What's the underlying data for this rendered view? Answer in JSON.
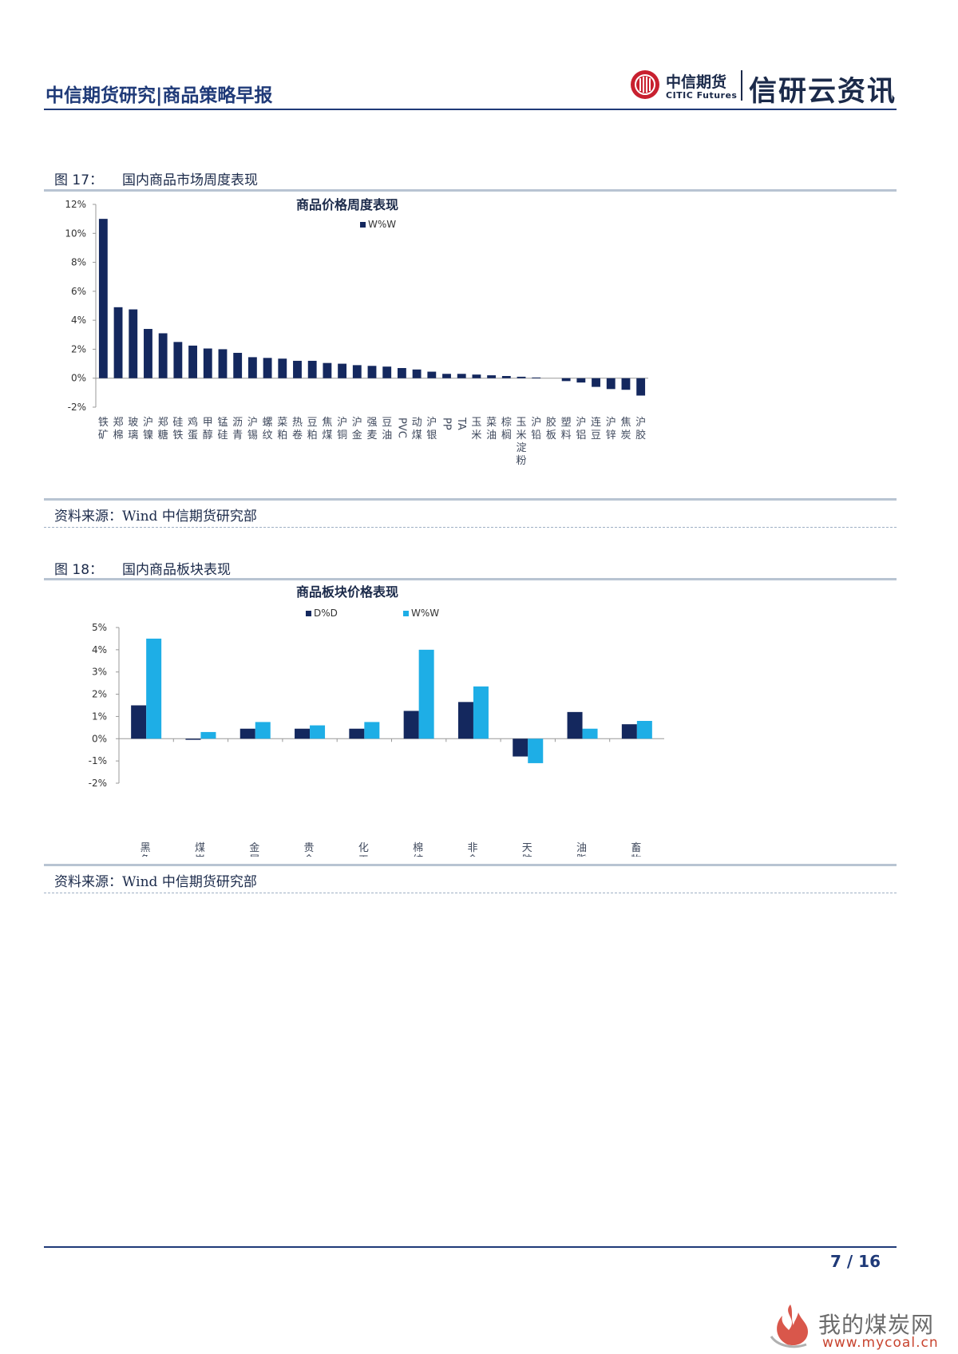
{
  "header": {
    "title": "中信期货研究|商品策略早报",
    "brand_cn": "中信期货",
    "brand_en": "CITIC Futures",
    "slogan": "信研云资讯"
  },
  "figures": [
    {
      "number": "图 17：",
      "caption": "国内商品市场周度表现",
      "source": "资料来源：Wind  中信期货研究部"
    },
    {
      "number": "图 18：",
      "caption": "国内商品板块表现",
      "source": "资料来源：Wind  中信期货研究部"
    }
  ],
  "chart_data": [
    {
      "type": "bar",
      "title": "商品价格周度表现",
      "xlabel": "",
      "ylabel": "",
      "ylim": [
        -2,
        12
      ],
      "yticks": [
        "12%",
        "10%",
        "8%",
        "6%",
        "4%",
        "2%",
        "0%",
        "-2%"
      ],
      "legend_position": "top",
      "color": "#14285e",
      "categories": [
        "铁矿",
        "郑棉",
        "玻璃",
        "沪镍",
        "郑糖",
        "硅铁",
        "鸡蛋",
        "甲醇",
        "锰硅",
        "沥青",
        "沪锡",
        "螺纹",
        "菜粕",
        "热卷",
        "豆粕",
        "焦煤",
        "沪铜",
        "沪金",
        "强麦",
        "豆油",
        "PVC",
        "动煤",
        "沪银",
        "PP",
        "TA",
        "玉米",
        "菜油",
        "棕榈",
        "玉米淀粉",
        "沪铅",
        "胶板",
        "塑料",
        "沪铝",
        "连豆",
        "沪锌",
        "焦炭",
        "沪胶"
      ],
      "series": [
        {
          "name": "W%W",
          "values": [
            11.0,
            4.9,
            4.75,
            3.4,
            3.1,
            2.5,
            2.25,
            2.05,
            2.0,
            1.75,
            1.45,
            1.4,
            1.35,
            1.2,
            1.2,
            1.05,
            1.0,
            0.9,
            0.85,
            0.8,
            0.7,
            0.6,
            0.45,
            0.3,
            0.3,
            0.25,
            0.2,
            0.15,
            0.1,
            0.05,
            0.0,
            -0.2,
            -0.3,
            -0.6,
            -0.75,
            -0.8,
            -1.2
          ]
        }
      ]
    },
    {
      "type": "bar",
      "title": "商品板块价格表现",
      "xlabel": "",
      "ylabel": "",
      "ylim": [
        -2,
        5
      ],
      "yticks": [
        "5%",
        "4%",
        "3%",
        "2%",
        "1%",
        "0%",
        "-1%",
        "-2%"
      ],
      "legend_position": "top",
      "categories": [
        "黑色",
        "煤炭",
        "金属",
        "贵金属",
        "化工",
        "棉纺糖",
        "非金属建材",
        "天胶",
        "油脂",
        "畜牧谷物"
      ],
      "series": [
        {
          "name": "D%D",
          "color": "#14285e",
          "values": [
            1.5,
            -0.05,
            0.45,
            0.45,
            0.45,
            1.25,
            1.65,
            -0.8,
            1.2,
            0.65
          ]
        },
        {
          "name": "W%W",
          "color": "#1eaee6",
          "values": [
            4.5,
            0.3,
            0.75,
            0.6,
            0.75,
            4.0,
            2.35,
            -1.1,
            0.45,
            0.8
          ]
        }
      ]
    }
  ],
  "footer": {
    "page": "7 / 16"
  },
  "watermark": {
    "text": "我的煤炭网",
    "url": "www.mycoal.cn"
  }
}
